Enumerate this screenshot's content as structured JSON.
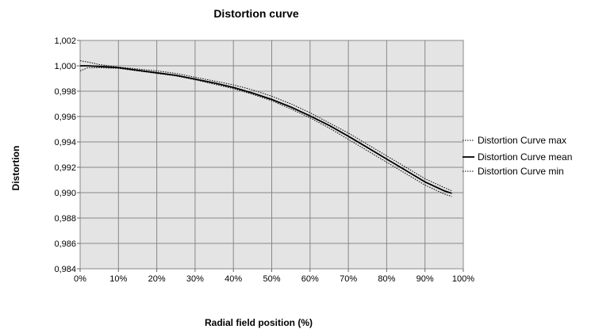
{
  "chart_data": {
    "type": "line",
    "title": "Distortion curve",
    "xlabel": "Radial field position (%)",
    "ylabel": "Distortion",
    "xlim": [
      0,
      100
    ],
    "ylim": [
      0.984,
      1.002
    ],
    "x_ticks": [
      "0%",
      "10%",
      "20%",
      "30%",
      "40%",
      "50%",
      "60%",
      "70%",
      "80%",
      "90%",
      "100%"
    ],
    "y_ticks": [
      "0,984",
      "0,986",
      "0,988",
      "0,990",
      "0,992",
      "0,994",
      "0,996",
      "0,998",
      "1,000",
      "1,002"
    ],
    "grid": true,
    "legend_position": "right",
    "plot_background": "#e4e4e4",
    "x": [
      0,
      2,
      5,
      10,
      15,
      20,
      25,
      30,
      35,
      40,
      45,
      50,
      55,
      60,
      65,
      70,
      75,
      80,
      85,
      90,
      95,
      97
    ],
    "series": [
      {
        "name": "Distortion Curve max",
        "style": "dotted",
        "values": [
          1.0004,
          1.0003,
          1.0001,
          0.9999,
          0.99975,
          0.9996,
          0.9994,
          0.9991,
          0.9988,
          0.9985,
          0.9981,
          0.9976,
          0.997,
          0.9963,
          0.9955,
          0.9947,
          0.9938,
          0.9929,
          0.992,
          0.9911,
          0.9904,
          0.99015
        ]
      },
      {
        "name": "Distortion Curve mean",
        "style": "solid",
        "values": [
          1.0,
          1.0,
          0.99995,
          0.99985,
          0.99965,
          0.99945,
          0.99925,
          0.99895,
          0.99865,
          0.9983,
          0.99785,
          0.99735,
          0.99675,
          0.99605,
          0.9953,
          0.99445,
          0.99355,
          0.99265,
          0.99175,
          0.99085,
          0.99015,
          0.98995
        ]
      },
      {
        "name": "Distortion Curve min",
        "style": "dotted",
        "values": [
          0.9996,
          0.99985,
          0.99985,
          0.9998,
          0.9996,
          0.9994,
          0.9992,
          0.9989,
          0.99855,
          0.9982,
          0.99775,
          0.99725,
          0.9966,
          0.9959,
          0.9951,
          0.9942,
          0.9933,
          0.9924,
          0.9915,
          0.9906,
          0.9899,
          0.9897
        ]
      }
    ]
  }
}
